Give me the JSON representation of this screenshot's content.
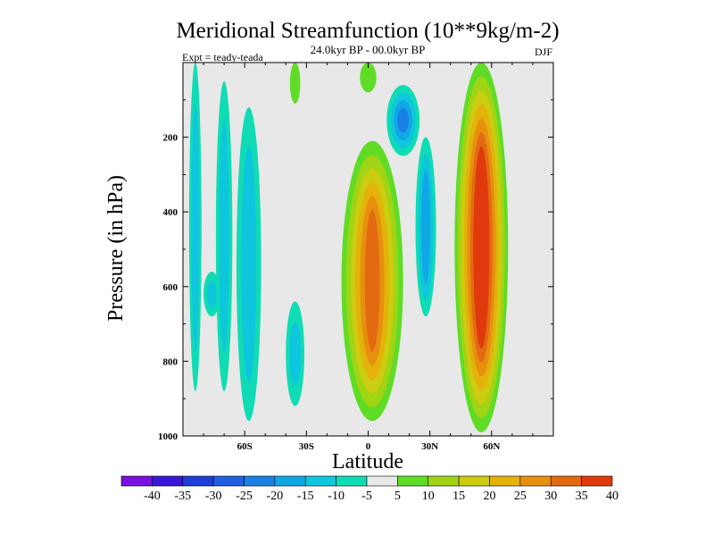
{
  "chart_data": {
    "type": "contour",
    "title": "Meridional Streamfunction (10**9kg/m-2)",
    "subtitle": "24.0kyr BP - 00.0kyr BP",
    "left_note": "Expt = teady-teada",
    "right_note": "DJF",
    "xlabel": "Latitude",
    "ylabel": "Pressure (in hPa)",
    "x_range": [
      -90,
      90
    ],
    "y_range": [
      0,
      1000
    ],
    "y_reversed": true,
    "x_ticks": [
      {
        "value": -60,
        "label": "60S"
      },
      {
        "value": -30,
        "label": "30S"
      },
      {
        "value": 0,
        "label": "0"
      },
      {
        "value": 30,
        "label": "30N"
      },
      {
        "value": 60,
        "label": "60N"
      }
    ],
    "y_ticks": [
      {
        "value": 200,
        "label": "200"
      },
      {
        "value": 400,
        "label": "400"
      },
      {
        "value": 600,
        "label": "600"
      },
      {
        "value": 800,
        "label": "800"
      },
      {
        "value": 1000,
        "label": "1000"
      }
    ],
    "levels": [
      -40,
      -35,
      -30,
      -25,
      -20,
      -15,
      -10,
      -5,
      5,
      10,
      15,
      20,
      25,
      30,
      35,
      40
    ],
    "colorbar_colors": [
      "#7a10e0",
      "#3a16d8",
      "#1e3ed8",
      "#1f5fe0",
      "#1a80e6",
      "#10a8e4",
      "#0ec6de",
      "#0fdcb4",
      "#e8e8e8",
      "#5fdc26",
      "#a0d414",
      "#cccc10",
      "#e4b20a",
      "#e6900e",
      "#e46a12",
      "#e03a0c"
    ],
    "features": [
      {
        "name": "cell-far-south-a",
        "value": -10,
        "x": [
          -87,
          -81
        ],
        "p": [
          0,
          880
        ],
        "shape": "column"
      },
      {
        "name": "cell-far-south-b",
        "value": -10,
        "x": [
          -74,
          -66
        ],
        "p": [
          50,
          880
        ],
        "shape": "column"
      },
      {
        "name": "cell-south-mid",
        "value": -10,
        "x": [
          -64,
          -52
        ],
        "p": [
          120,
          960
        ],
        "shape": "column"
      },
      {
        "name": "cell-south-lower",
        "value": -10,
        "x": [
          -40,
          -31
        ],
        "p": [
          640,
          920
        ],
        "shape": "blob"
      },
      {
        "name": "cell-southern-small",
        "value": -10,
        "x": [
          -80,
          -72
        ],
        "p": [
          560,
          680
        ],
        "shape": "blob"
      },
      {
        "name": "cell-north-upper",
        "value": -10,
        "x": [
          9,
          25
        ],
        "p": [
          60,
          250
        ],
        "shape": "blob",
        "min": -20
      },
      {
        "name": "cell-north-mid",
        "value": -10,
        "x": [
          23,
          33
        ],
        "p": [
          200,
          680
        ],
        "shape": "column",
        "min": -15
      },
      {
        "name": "cell-tropical-north",
        "value": 25,
        "x": [
          -13,
          17
        ],
        "p": [
          210,
          960
        ],
        "shape": "column",
        "max": 30
      },
      {
        "name": "cell-midlat-north",
        "value": 40,
        "x": [
          42,
          68
        ],
        "p": [
          0,
          990
        ],
        "shape": "column",
        "max": 40
      },
      {
        "name": "cell-tropical-top",
        "value": 5,
        "x": [
          -4,
          4
        ],
        "p": [
          0,
          80
        ],
        "shape": "blob"
      },
      {
        "name": "cell-subtrop-top",
        "value": 5,
        "x": [
          -38,
          -33
        ],
        "p": [
          0,
          110
        ],
        "shape": "blob"
      }
    ]
  }
}
